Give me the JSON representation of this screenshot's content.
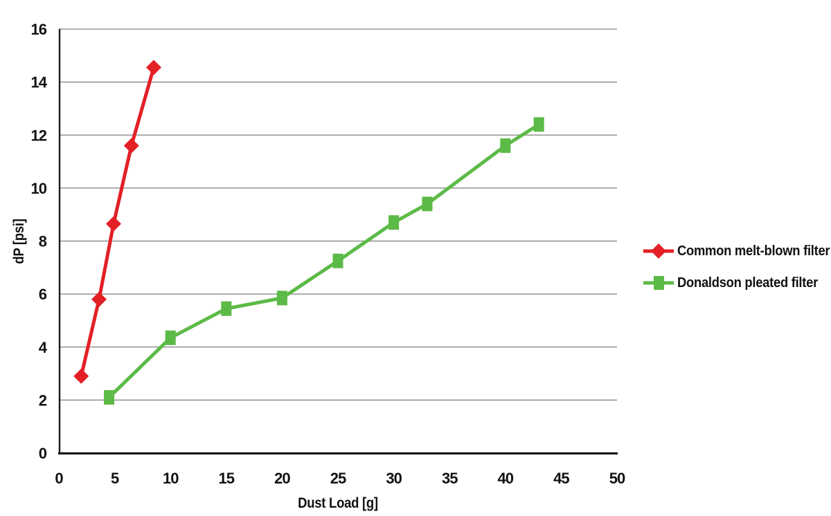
{
  "chart_data": {
    "type": "line",
    "title": "",
    "xlabel": "Dust Load [g]",
    "ylabel": "dP [psi]",
    "xlim": [
      0,
      50
    ],
    "ylim": [
      0,
      16
    ],
    "x_ticks": [
      0,
      5,
      10,
      15,
      20,
      25,
      30,
      35,
      40,
      45,
      50
    ],
    "y_ticks": [
      0,
      2,
      4,
      6,
      8,
      10,
      12,
      14,
      16
    ],
    "grid": "horizontal",
    "legend_position": "right",
    "series": [
      {
        "name": "Common melt-blown filter",
        "color": "#E22026",
        "marker": "diamond",
        "x": [
          2,
          3.6,
          4.9,
          6.5,
          8.5
        ],
        "y": [
          2.9,
          5.8,
          8.65,
          11.6,
          14.55
        ]
      },
      {
        "name": "Donaldson pleated filter",
        "color": "#5CBA47",
        "marker": "square",
        "x": [
          4.5,
          10,
          15,
          20,
          25,
          30,
          33,
          40,
          43
        ],
        "y": [
          2.1,
          4.35,
          5.45,
          5.85,
          7.25,
          8.7,
          9.4,
          11.6,
          12.4
        ]
      }
    ]
  },
  "colors": {
    "grid": "#7F7F7F",
    "axis": "#1A1A1A",
    "text": "#111111",
    "background": "#FFFFFF"
  }
}
